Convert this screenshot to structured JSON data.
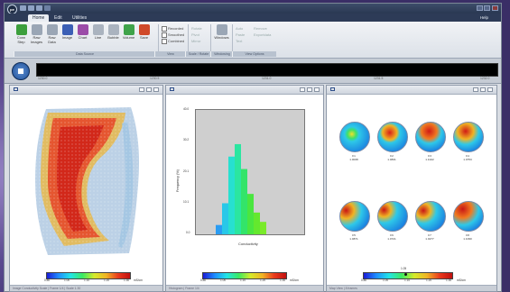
{
  "app": {
    "logo_text": "pe",
    "tabs": [
      {
        "label": "Home",
        "active": true
      },
      {
        "label": "Edit",
        "active": false
      },
      {
        "label": "Utilities",
        "active": false
      }
    ],
    "help_label": "Help"
  },
  "ribbon": {
    "buttons": [
      {
        "label": "Conn\nStep",
        "icon": "camera-icon",
        "color": "#3c9f3c"
      },
      {
        "label": "Raw\nImages",
        "icon": "images-icon",
        "color": "#9aa6b5"
      },
      {
        "label": "Raw\nData",
        "icon": "data-icon",
        "color": "#9aa6b5"
      },
      {
        "label": "Image",
        "icon": "image-icon",
        "color": "#3b5fb5"
      },
      {
        "label": "Chart",
        "icon": "chart-icon",
        "color": "#9b4ca8"
      },
      {
        "label": "Line",
        "icon": "line-icon",
        "color": "#aab3bf"
      },
      {
        "label": "Bubble",
        "icon": "bubble-icon",
        "color": "#aab3bf"
      },
      {
        "label": "Volume",
        "icon": "volume-icon",
        "color": "#3fa34a"
      },
      {
        "label": "Save",
        "icon": "save-icon",
        "color": "#d04a2a"
      }
    ],
    "options": [
      {
        "label": "Recorded",
        "enabled": true
      },
      {
        "label": "Smoothed",
        "enabled": true
      },
      {
        "label": "Combined",
        "enabled": true
      }
    ],
    "dim_options": [
      "Rotate",
      "Pivot",
      "Mirror"
    ],
    "windows_label": "Windows",
    "small_labels": [
      "Auto",
      "Paste",
      "Text",
      "Remove",
      "Exportdata"
    ],
    "group_labels": [
      "Data Source",
      "View",
      "Scale / Rotate",
      "Windowing",
      "Windows",
      "View Options"
    ]
  },
  "timeline": {
    "ticks": [
      "1230.0",
      "1230.5",
      "1231.0",
      "1231.5",
      "1232.0"
    ]
  },
  "panels": [
    {
      "name": "image",
      "footer": "Image Conductivity Scale   |   Frame 1/4   |   Scale 1.30",
      "colorbar": {
        "labels": [
          "0.80",
          "1.00",
          "1.10",
          "1.20",
          "1.30"
        ],
        "unit": "mS/cm"
      }
    },
    {
      "name": "histogram",
      "footer": "Histogram   |   Frame 1/4",
      "colorbar": {
        "labels": [
          "0.80",
          "1.00",
          "1.10",
          "1.20",
          "1.30"
        ],
        "unit": "mS/cm"
      }
    },
    {
      "name": "head-series",
      "footer": "Map View   |   8 frames",
      "colorbar": {
        "labels": [
          "0.80",
          "1.00",
          "1.10",
          "1.20",
          "1.30"
        ],
        "unit": "mS/cm",
        "marker_label": "1.05",
        "marker_value": 1.05
      }
    }
  ],
  "chart_data": {
    "type": "bar",
    "xlabel": "Conductivity",
    "ylabel": "Frequency (%)",
    "ylim": [
      0,
      40
    ],
    "yticks": [
      "40.0",
      "30.2",
      "20.1",
      "10.1",
      "0.0"
    ],
    "bins": [
      {
        "v": 3,
        "color": "#2a9cf2"
      },
      {
        "v": 10,
        "color": "#29c8e8"
      },
      {
        "v": 25,
        "color": "#27e0d0"
      },
      {
        "v": 29,
        "color": "#2be6a0"
      },
      {
        "v": 21,
        "color": "#33e46a"
      },
      {
        "v": 13,
        "color": "#4ae640"
      },
      {
        "v": 7,
        "color": "#64e82e"
      },
      {
        "v": 4,
        "color": "#7aea2a"
      }
    ]
  },
  "head_maps": [
    {
      "name": "F1",
      "value": "1.0038"
    },
    {
      "name": "F2",
      "value": "1.0831"
    },
    {
      "name": "F3",
      "value": "1.1022"
    },
    {
      "name": "F4",
      "value": "1.0753"
    },
    {
      "name": "F5",
      "value": "1.0871"
    },
    {
      "name": "F6",
      "value": "1.0721"
    },
    {
      "name": "F7",
      "value": "1.0277"
    },
    {
      "name": "F8",
      "value": "1.1090"
    }
  ]
}
